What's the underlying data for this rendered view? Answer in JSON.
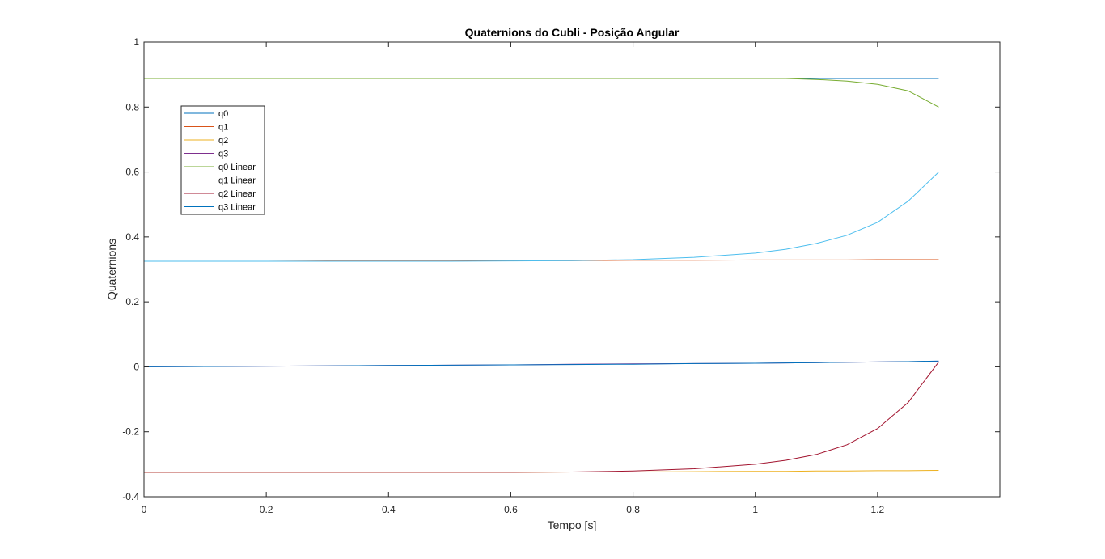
{
  "chart_data": {
    "type": "line",
    "title": "Quaternions do Cubli - Posição Angular",
    "xlabel": "Tempo [s]",
    "ylabel": "Quaternions",
    "xlim": [
      0,
      1.4
    ],
    "ylim": [
      -0.4,
      1
    ],
    "xticks": [
      0,
      0.2,
      0.4,
      0.6,
      0.8,
      1,
      1.2
    ],
    "xtick_labels": [
      "0",
      "0.2",
      "0.4",
      "0.6",
      "0.8",
      "1",
      "1.2"
    ],
    "yticks": [
      -0.4,
      -0.2,
      0,
      0.2,
      0.4,
      0.6,
      0.8,
      1
    ],
    "ytick_labels": [
      "-0.4",
      "-0.2",
      "0",
      "0.2",
      "0.4",
      "0.6",
      "0.8",
      "1"
    ],
    "grid": false,
    "legend_position": "top-left",
    "x": [
      0,
      0.1,
      0.2,
      0.3,
      0.4,
      0.5,
      0.6,
      0.7,
      0.8,
      0.9,
      1.0,
      1.05,
      1.1,
      1.15,
      1.2,
      1.25,
      1.3
    ],
    "series": [
      {
        "name": "q0",
        "color": "#0072BD",
        "values": [
          0.888,
          0.888,
          0.888,
          0.888,
          0.888,
          0.888,
          0.888,
          0.888,
          0.888,
          0.888,
          0.888,
          0.888,
          0.888,
          0.888,
          0.888,
          0.888,
          0.888
        ]
      },
      {
        "name": "q1",
        "color": "#D95319",
        "values": [
          0.325,
          0.325,
          0.325,
          0.326,
          0.326,
          0.326,
          0.327,
          0.327,
          0.328,
          0.328,
          0.329,
          0.329,
          0.329,
          0.329,
          0.33,
          0.33,
          0.33
        ]
      },
      {
        "name": "q2",
        "color": "#EDB120",
        "values": [
          -0.325,
          -0.325,
          -0.325,
          -0.325,
          -0.325,
          -0.325,
          -0.325,
          -0.324,
          -0.324,
          -0.323,
          -0.322,
          -0.322,
          -0.321,
          -0.321,
          -0.32,
          -0.32,
          -0.319
        ]
      },
      {
        "name": "q3",
        "color": "#7E2F8E",
        "values": [
          0,
          0.001,
          0.002,
          0.003,
          0.004,
          0.005,
          0.006,
          0.008,
          0.009,
          0.01,
          0.011,
          0.012,
          0.013,
          0.014,
          0.015,
          0.016,
          0.017
        ]
      },
      {
        "name": "q0 Linear",
        "color": "#77AC30",
        "values": [
          0.888,
          0.888,
          0.888,
          0.888,
          0.888,
          0.888,
          0.888,
          0.888,
          0.888,
          0.888,
          0.888,
          0.888,
          0.885,
          0.88,
          0.87,
          0.85,
          0.8
        ]
      },
      {
        "name": "q1 Linear",
        "color": "#4DBEEE",
        "values": [
          0.325,
          0.325,
          0.325,
          0.325,
          0.325,
          0.325,
          0.326,
          0.327,
          0.33,
          0.337,
          0.35,
          0.362,
          0.38,
          0.405,
          0.445,
          0.51,
          0.6
        ]
      },
      {
        "name": "q2 Linear",
        "color": "#A2142F",
        "values": [
          -0.325,
          -0.325,
          -0.325,
          -0.325,
          -0.325,
          -0.325,
          -0.325,
          -0.324,
          -0.321,
          -0.314,
          -0.3,
          -0.288,
          -0.27,
          -0.24,
          -0.19,
          -0.11,
          0.015
        ]
      },
      {
        "name": "q3 Linear",
        "color": "#0072BD",
        "values": [
          0,
          0.001,
          0.002,
          0.003,
          0.004,
          0.005,
          0.006,
          0.007,
          0.008,
          0.01,
          0.011,
          0.012,
          0.013,
          0.014,
          0.015,
          0.016,
          0.018
        ]
      }
    ]
  }
}
